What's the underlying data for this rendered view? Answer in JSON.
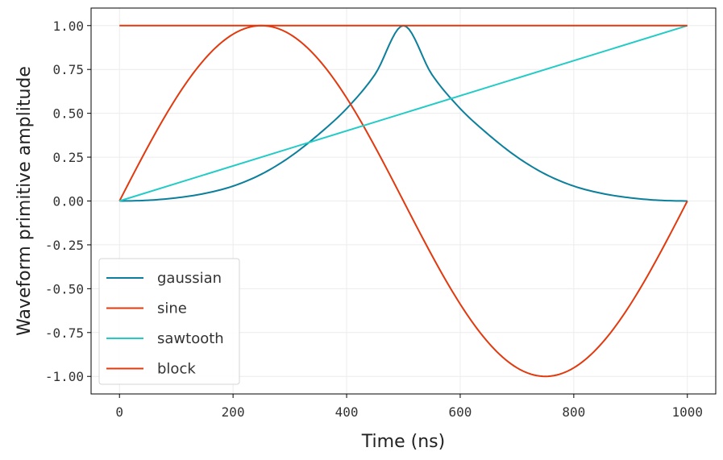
{
  "chart_data": {
    "type": "line",
    "xlabel": "Time (ns)",
    "ylabel": "Waveform primitive amplitude",
    "xlim": [
      -50,
      1050
    ],
    "ylim": [
      -1.1,
      1.1
    ],
    "x_ticks": [
      0,
      200,
      400,
      600,
      800,
      1000
    ],
    "x_tick_labels": [
      "0",
      "200",
      "400",
      "600",
      "800",
      "1000"
    ],
    "y_ticks": [
      1.0,
      0.75,
      0.5,
      0.25,
      0.0,
      -0.25,
      -0.5,
      -0.75,
      -1.0
    ],
    "y_tick_labels": [
      "1.00",
      "0.75",
      "0.50",
      "0.25",
      "0.00",
      "-0.25",
      "-0.50",
      "-0.75",
      "-1.00"
    ],
    "grid": true,
    "legend_position": "lower-left",
    "series": [
      {
        "name": "gaussian",
        "color": "#0b7f9b",
        "x": [
          0,
          50,
          100,
          150,
          200,
          250,
          300,
          350,
          400,
          450,
          500,
          550,
          600,
          650,
          700,
          750,
          800,
          850,
          900,
          950,
          1000
        ],
        "y": [
          0.0,
          0.004,
          0.018,
          0.043,
          0.085,
          0.153,
          0.251,
          0.378,
          0.527,
          0.722,
          1.0,
          0.722,
          0.527,
          0.378,
          0.251,
          0.153,
          0.085,
          0.043,
          0.018,
          0.004,
          0.0
        ]
      },
      {
        "name": "sine",
        "color": "#e2390e",
        "x": [
          0,
          50,
          100,
          150,
          200,
          250,
          300,
          350,
          400,
          450,
          500,
          550,
          600,
          650,
          700,
          750,
          800,
          850,
          900,
          950,
          1000
        ],
        "y": [
          0.0,
          0.309,
          0.588,
          0.809,
          0.951,
          1.0,
          0.951,
          0.809,
          0.588,
          0.309,
          0.0,
          -0.309,
          -0.588,
          -0.809,
          -0.951,
          -1.0,
          -0.951,
          -0.809,
          -0.588,
          -0.309,
          0.0
        ]
      },
      {
        "name": "sawtooth",
        "color": "#22cbc6",
        "x": [
          0,
          1000
        ],
        "y": [
          0.0,
          1.0
        ]
      },
      {
        "name": "block",
        "color": "#e2390e",
        "x": [
          0,
          1000
        ],
        "y": [
          1.0,
          1.0
        ]
      }
    ]
  }
}
